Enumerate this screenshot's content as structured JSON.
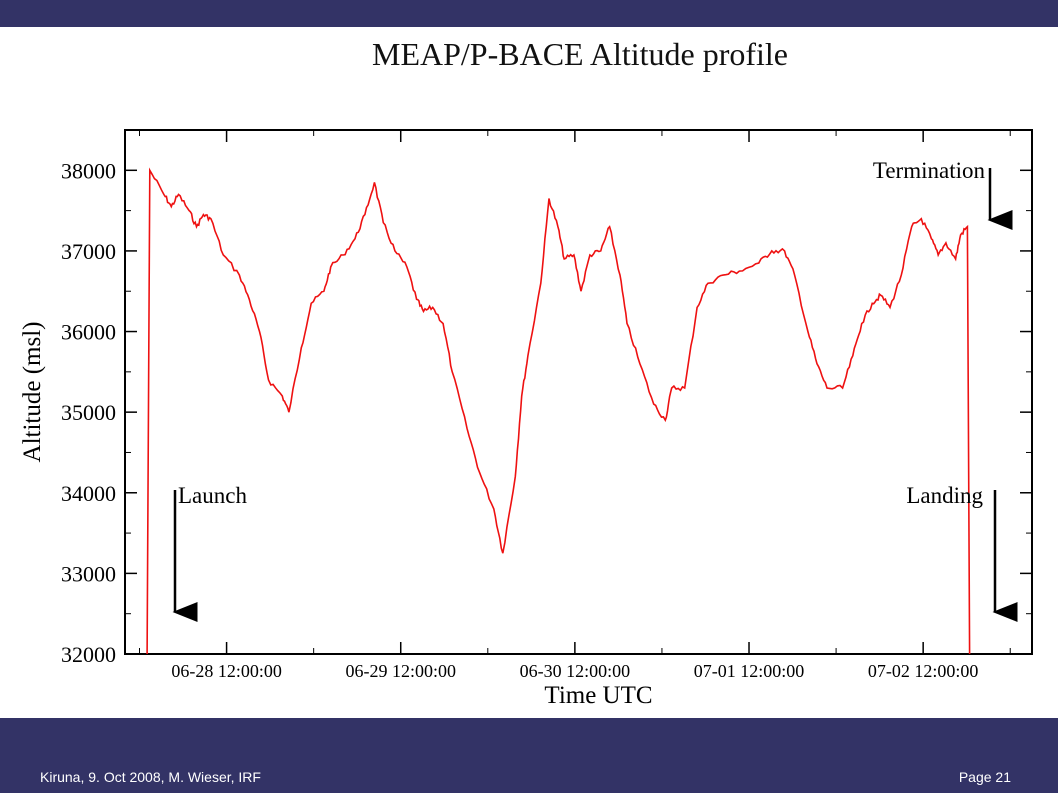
{
  "slide": {
    "footer_left": "Kiruna,  9. Oct  2008, M. Wieser, IRF",
    "footer_right": "Page 21",
    "bar_color": "#333366"
  },
  "chart_data": {
    "type": "line",
    "title": "MEAP/P-BACE Altitude profile",
    "xlabel": "Time UTC",
    "ylabel": "Altitude (msl)",
    "ylim": [
      32000,
      38500
    ],
    "yticks": [
      32000,
      33000,
      34000,
      35000,
      36000,
      37000,
      38000
    ],
    "xlim": [
      "2008-06-27 22:00",
      "2008-07-03 03:00"
    ],
    "xticks": [
      {
        "t": "2008-06-28 12:00",
        "label": "06-28 12:00:00"
      },
      {
        "t": "2008-06-29 12:00",
        "label": "06-29 12:00:00"
      },
      {
        "t": "2008-06-30 12:00",
        "label": "06-30 12:00:00"
      },
      {
        "t": "2008-07-01 12:00",
        "label": "07-01 12:00:00"
      },
      {
        "t": "2008-07-02 12:00",
        "label": "07-02 12:00:00"
      }
    ],
    "grid": false,
    "series": [
      {
        "color": "#ee1111",
        "points": [
          [
            "2008-06-28 01:03",
            32000
          ],
          [
            "2008-06-28 01:25",
            38000
          ],
          [
            "2008-06-28 03:22",
            37700
          ],
          [
            "2008-06-28 04:23",
            37550
          ],
          [
            "2008-06-28 05:22",
            37700
          ],
          [
            "2008-06-28 06:50",
            37500
          ],
          [
            "2008-06-28 07:51",
            37300
          ],
          [
            "2008-06-28 08:48",
            37450
          ],
          [
            "2008-06-28 09:50",
            37400
          ],
          [
            "2008-06-28 11:33",
            36950
          ],
          [
            "2008-06-28 13:46",
            36700
          ],
          [
            "2008-06-28 15:08",
            36400
          ],
          [
            "2008-06-28 16:32",
            36000
          ],
          [
            "2008-06-28 17:47",
            35400
          ],
          [
            "2008-06-28 19:41",
            35200
          ],
          [
            "2008-06-28 20:35",
            35000
          ],
          [
            "2008-06-28 22:18",
            35800
          ],
          [
            "2008-06-28 23:40",
            36350
          ],
          [
            "2008-06-29 01:25",
            36500
          ],
          [
            "2008-06-29 02:21",
            36800
          ],
          [
            "2008-06-29 04:04",
            36950
          ],
          [
            "2008-06-29 05:42",
            37150
          ],
          [
            "2008-06-29 07:04",
            37450
          ],
          [
            "2008-06-29 08:22",
            37850
          ],
          [
            "2008-06-29 09:36",
            37350
          ],
          [
            "2008-06-29 11:12",
            37000
          ],
          [
            "2008-06-29 12:51",
            36800
          ],
          [
            "2008-06-29 14:11",
            36400
          ],
          [
            "2008-06-29 15:08",
            36250
          ],
          [
            "2008-06-29 16:24",
            36300
          ],
          [
            "2008-06-29 17:50",
            36100
          ],
          [
            "2008-06-29 19:06",
            35500
          ],
          [
            "2008-06-29 21:08",
            34800
          ],
          [
            "2008-06-29 22:52",
            34250
          ],
          [
            "2008-06-30 00:50",
            33800
          ],
          [
            "2008-06-30 02:04",
            33250
          ],
          [
            "2008-06-30 03:47",
            34200
          ],
          [
            "2008-06-30 04:40",
            35200
          ],
          [
            "2008-06-30 05:32",
            35700
          ],
          [
            "2008-06-30 07:18",
            36600
          ],
          [
            "2008-06-30 08:26",
            37650
          ],
          [
            "2008-06-30 09:40",
            37300
          ],
          [
            "2008-06-30 10:32",
            36900
          ],
          [
            "2008-06-30 11:52",
            36950
          ],
          [
            "2008-06-30 12:51",
            36500
          ],
          [
            "2008-06-30 14:04",
            36950
          ],
          [
            "2008-06-30 15:34",
            37000
          ],
          [
            "2008-06-30 16:47",
            37300
          ],
          [
            "2008-06-30 18:13",
            36700
          ],
          [
            "2008-06-30 19:11",
            36100
          ],
          [
            "2008-06-30 20:58",
            35600
          ],
          [
            "2008-06-30 22:52",
            35100
          ],
          [
            "2008-07-01 00:28",
            34900
          ],
          [
            "2008-07-01 01:21",
            35300
          ],
          [
            "2008-07-01 03:08",
            35300
          ],
          [
            "2008-07-01 04:51",
            36300
          ],
          [
            "2008-07-01 06:21",
            36600
          ],
          [
            "2008-07-01 08:26",
            36700
          ],
          [
            "2008-07-01 10:40",
            36750
          ],
          [
            "2008-07-01 13:21",
            36850
          ],
          [
            "2008-07-01 15:08",
            37000
          ],
          [
            "2008-07-01 16:54",
            37000
          ],
          [
            "2008-07-01 18:17",
            36700
          ],
          [
            "2008-07-01 20:07",
            36000
          ],
          [
            "2008-07-01 21:22",
            35600
          ],
          [
            "2008-07-01 22:45",
            35300
          ],
          [
            "2008-07-02 00:54",
            35300
          ],
          [
            "2008-07-02 02:18",
            35700
          ],
          [
            "2008-07-02 03:32",
            36100
          ],
          [
            "2008-07-02 04:59",
            36350
          ],
          [
            "2008-07-02 06:10",
            36450
          ],
          [
            "2008-07-02 07:26",
            36300
          ],
          [
            "2008-07-02 08:59",
            36700
          ],
          [
            "2008-07-02 10:25",
            37300
          ],
          [
            "2008-07-02 11:45",
            37400
          ],
          [
            "2008-07-02 13:08",
            37150
          ],
          [
            "2008-07-02 14:04",
            36950
          ],
          [
            "2008-07-02 15:08",
            37100
          ],
          [
            "2008-07-02 16:28",
            36900
          ],
          [
            "2008-07-02 17:10",
            37200
          ],
          [
            "2008-07-02 18:06",
            37300
          ],
          [
            "2008-07-02 18:24",
            32000
          ]
        ]
      }
    ],
    "annotations": [
      {
        "text": "Launch",
        "t": "2008-06-28 00:30",
        "y": 34000
      },
      {
        "text": "Landing",
        "t": "2008-07-02 17:15",
        "y": 34000
      },
      {
        "text": "Termination",
        "t": "2008-07-02 14:00",
        "y": 37950
      }
    ]
  }
}
